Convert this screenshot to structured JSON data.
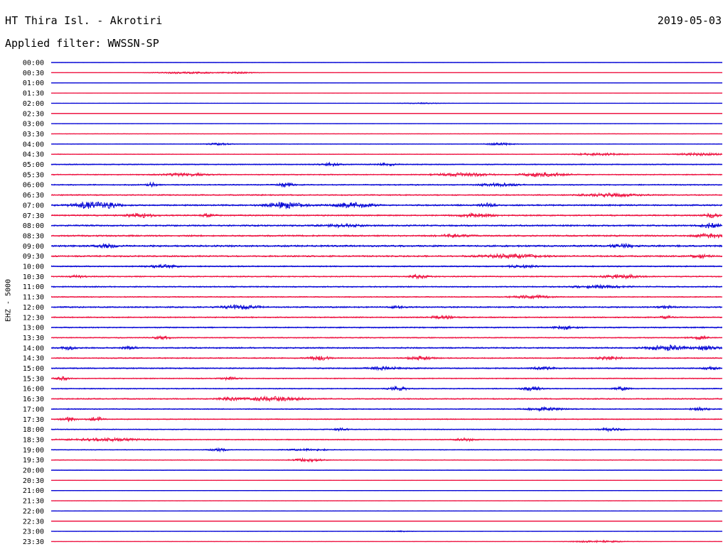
{
  "header": {
    "station": "HT Thira Isl. - Akrotiri",
    "date": "2019-05-03",
    "filter": "Applied filter: WWSSN-SP",
    "channel": "EHZ - 5000"
  },
  "chart_data": {
    "type": "line",
    "title": "HT Thira Isl. - Akrotiri",
    "ylabel": "EHZ - 5000",
    "x_unit": "minutes within each 30-minute trace row",
    "xlim": [
      0,
      30
    ],
    "colors": [
      "#0a0ad6",
      "#ee1744"
    ],
    "series": [
      {
        "name": "00:00",
        "amplitude": 0.05,
        "bursts": []
      },
      {
        "name": "00:30",
        "amplitude": 0.05,
        "bursts": [
          [
            6,
            0.7,
            1.4
          ],
          [
            8.5,
            0.5,
            0.8
          ]
        ]
      },
      {
        "name": "01:00",
        "amplitude": 0.05,
        "bursts": []
      },
      {
        "name": "01:30",
        "amplitude": 0.05,
        "bursts": []
      },
      {
        "name": "02:00",
        "amplitude": 0.06,
        "bursts": [
          [
            16.5,
            0.3,
            1
          ]
        ]
      },
      {
        "name": "02:30",
        "amplitude": 0.06,
        "bursts": []
      },
      {
        "name": "03:00",
        "amplitude": 0.07,
        "bursts": []
      },
      {
        "name": "03:30",
        "amplitude": 0.12,
        "bursts": []
      },
      {
        "name": "04:00",
        "amplitude": 0.18,
        "bursts": [
          [
            7.5,
            0.5,
            0.6
          ],
          [
            20,
            0.6,
            0.6
          ]
        ]
      },
      {
        "name": "04:30",
        "amplitude": 0.2,
        "bursts": [
          [
            24.5,
            0.6,
            1.2
          ],
          [
            29,
            0.7,
            1
          ]
        ]
      },
      {
        "name": "05:00",
        "amplitude": 0.3,
        "bursts": [
          [
            12.5,
            0.9,
            0.4
          ],
          [
            15,
            0.8,
            0.4
          ]
        ]
      },
      {
        "name": "05:30",
        "amplitude": 0.3,
        "bursts": [
          [
            6,
            0.8,
            1
          ],
          [
            18.5,
            1,
            1.2
          ],
          [
            22,
            1.1,
            1
          ]
        ]
      },
      {
        "name": "06:00",
        "amplitude": 0.35,
        "bursts": [
          [
            4.5,
            1.2,
            0.2
          ],
          [
            10.5,
            1.3,
            0.3
          ],
          [
            20,
            0.9,
            0.8
          ]
        ]
      },
      {
        "name": "06:30",
        "amplitude": 0.35,
        "bursts": [
          [
            25,
            1,
            1.2
          ]
        ]
      },
      {
        "name": "07:00",
        "amplitude": 0.45,
        "bursts": [
          [
            1.5,
            2,
            0.6
          ],
          [
            2.5,
            1.7,
            0.5
          ],
          [
            10.5,
            1.6,
            0.8
          ],
          [
            13.5,
            1.4,
            0.8
          ],
          [
            19.5,
            1.2,
            0.3
          ]
        ]
      },
      {
        "name": "07:30",
        "amplitude": 0.4,
        "bursts": [
          [
            4,
            1.2,
            0.6
          ],
          [
            7,
            1,
            0.3
          ],
          [
            19,
            1.1,
            0.8
          ],
          [
            29.5,
            1.3,
            0.3
          ]
        ]
      },
      {
        "name": "08:00",
        "amplitude": 0.45,
        "bursts": [
          [
            13,
            0.8,
            0.8
          ],
          [
            29.5,
            1.4,
            0.4
          ]
        ]
      },
      {
        "name": "08:30",
        "amplitude": 0.45,
        "bursts": [
          [
            18,
            0.9,
            0.6
          ],
          [
            29.5,
            1.3,
            0.6
          ]
        ]
      },
      {
        "name": "09:00",
        "amplitude": 0.5,
        "bursts": [
          [
            2.5,
            1,
            0.4
          ],
          [
            25.5,
            1,
            0.5
          ]
        ]
      },
      {
        "name": "09:30",
        "amplitude": 0.45,
        "bursts": [
          [
            20.5,
            1.1,
            1.2
          ],
          [
            29,
            1,
            0.4
          ]
        ]
      },
      {
        "name": "10:00",
        "amplitude": 0.35,
        "bursts": [
          [
            5,
            0.9,
            0.6
          ],
          [
            21,
            0.8,
            0.6
          ]
        ]
      },
      {
        "name": "10:30",
        "amplitude": 0.35,
        "bursts": [
          [
            1.2,
            1,
            0.3
          ],
          [
            16.5,
            1.2,
            0.4
          ],
          [
            25.5,
            1.1,
            0.8
          ]
        ]
      },
      {
        "name": "11:00",
        "amplitude": 0.35,
        "bursts": [
          [
            24.5,
            0.9,
            1
          ]
        ]
      },
      {
        "name": "11:30",
        "amplitude": 0.3,
        "bursts": [
          [
            21.5,
            0.9,
            0.8
          ]
        ]
      },
      {
        "name": "12:00",
        "amplitude": 0.4,
        "bursts": [
          [
            8.5,
            1.2,
            0.8
          ],
          [
            15.5,
            0.9,
            0.3
          ],
          [
            27.5,
            0.8,
            0.3
          ]
        ]
      },
      {
        "name": "12:30",
        "amplitude": 0.35,
        "bursts": [
          [
            17.5,
            1,
            0.5
          ],
          [
            27.5,
            0.8,
            0.3
          ]
        ]
      },
      {
        "name": "13:00",
        "amplitude": 0.35,
        "bursts": [
          [
            23,
            1,
            0.5
          ]
        ]
      },
      {
        "name": "13:30",
        "amplitude": 0.3,
        "bursts": [
          [
            5,
            0.9,
            0.4
          ],
          [
            29,
            0.9,
            0.4
          ]
        ]
      },
      {
        "name": "14:00",
        "amplitude": 0.4,
        "bursts": [
          [
            0.8,
            1,
            0.3
          ],
          [
            3.5,
            0.9,
            0.3
          ],
          [
            27.5,
            1.5,
            0.8
          ],
          [
            29.3,
            1.2,
            0.5
          ]
        ]
      },
      {
        "name": "14:30",
        "amplitude": 0.35,
        "bursts": [
          [
            12,
            1.3,
            0.4
          ],
          [
            16.5,
            1,
            0.5
          ],
          [
            25,
            0.9,
            0.6
          ]
        ]
      },
      {
        "name": "15:00",
        "amplitude": 0.35,
        "bursts": [
          [
            15,
            0.9,
            0.8
          ],
          [
            22,
            0.8,
            0.5
          ],
          [
            29.5,
            1,
            0.3
          ]
        ]
      },
      {
        "name": "15:30",
        "amplitude": 0.3,
        "bursts": [
          [
            0.5,
            0.9,
            0.3
          ],
          [
            8,
            0.7,
            0.4
          ]
        ]
      },
      {
        "name": "16:00",
        "amplitude": 0.3,
        "bursts": [
          [
            15.5,
            1.1,
            0.4
          ],
          [
            21.5,
            1.3,
            0.4
          ],
          [
            25.5,
            1.1,
            0.3
          ]
        ]
      },
      {
        "name": "16:30",
        "amplitude": 0.35,
        "bursts": [
          [
            10,
            1.2,
            1.2
          ],
          [
            8,
            0.8,
            0.5
          ]
        ]
      },
      {
        "name": "17:00",
        "amplitude": 0.3,
        "bursts": [
          [
            22,
            0.9,
            0.8
          ],
          [
            29,
            0.9,
            0.4
          ]
        ]
      },
      {
        "name": "17:30",
        "amplitude": 0.3,
        "bursts": [
          [
            0.8,
            1.2,
            0.3
          ],
          [
            2,
            1.4,
            0.3
          ]
        ]
      },
      {
        "name": "18:00",
        "amplitude": 0.25,
        "bursts": [
          [
            13,
            0.8,
            0.3
          ],
          [
            25,
            0.9,
            0.5
          ]
        ]
      },
      {
        "name": "18:30",
        "amplitude": 0.3,
        "bursts": [
          [
            2.5,
            0.8,
            1.5
          ],
          [
            18.5,
            0.8,
            0.4
          ]
        ]
      },
      {
        "name": "19:00",
        "amplitude": 0.22,
        "bursts": [
          [
            7.5,
            0.9,
            0.4
          ],
          [
            11.5,
            0.6,
            0.8
          ]
        ]
      },
      {
        "name": "19:30",
        "amplitude": 0.22,
        "bursts": [
          [
            11.5,
            1,
            0.6
          ]
        ]
      },
      {
        "name": "20:00",
        "amplitude": 0.12,
        "bursts": []
      },
      {
        "name": "20:30",
        "amplitude": 0.1,
        "bursts": []
      },
      {
        "name": "21:00",
        "amplitude": 0.1,
        "bursts": []
      },
      {
        "name": "21:30",
        "amplitude": 0.1,
        "bursts": []
      },
      {
        "name": "22:00",
        "amplitude": 0.08,
        "bursts": []
      },
      {
        "name": "22:30",
        "amplitude": 0.08,
        "bursts": []
      },
      {
        "name": "23:00",
        "amplitude": 0.08,
        "bursts": [
          [
            15.5,
            0.3,
            0.6
          ]
        ]
      },
      {
        "name": "23:30",
        "amplitude": 0.08,
        "bursts": [
          [
            24.5,
            0.6,
            1.2
          ]
        ]
      }
    ]
  }
}
